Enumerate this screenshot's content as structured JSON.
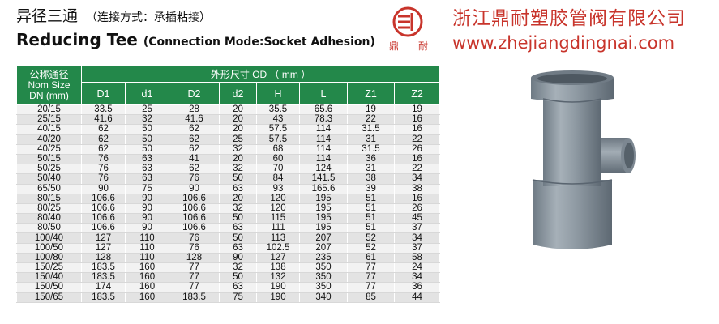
{
  "header": {
    "title_cn": "异径三通",
    "connection_cn": "（连接方式：承插粘接）",
    "title_en": "Reducing Tee",
    "connection_en": "(Connection Mode:Socket Adhesion)"
  },
  "logo": {
    "char1": "鼎",
    "char2": "耐"
  },
  "company": {
    "name_cn": "浙江鼎耐塑胶管阀有限公司",
    "url": "www.zhejiangdingnai.com"
  },
  "colors": {
    "header_green": "#23884a",
    "brand_red": "#c8342b",
    "pipe_grey": "#8f9aa3"
  },
  "table": {
    "nominal_header": [
      "公称通径",
      "Nom Size",
      "DN (mm)"
    ],
    "od_header": "外形尺寸 OD （ mm ）",
    "columns": [
      "D1",
      "d1",
      "D2",
      "d2",
      "H",
      "L",
      "Z1",
      "Z2"
    ],
    "rows": [
      [
        "20/15",
        "33.5",
        "25",
        "28",
        "20",
        "35.5",
        "65.6",
        "19",
        "19"
      ],
      [
        "25/15",
        "41.6",
        "32",
        "41.6",
        "20",
        "43",
        "78.3",
        "22",
        "16"
      ],
      [
        "40/15",
        "62",
        "50",
        "62",
        "20",
        "57.5",
        "114",
        "31.5",
        "16"
      ],
      [
        "40/20",
        "62",
        "50",
        "62",
        "25",
        "57.5",
        "114",
        "31",
        "22"
      ],
      [
        "40/25",
        "62",
        "50",
        "62",
        "32",
        "68",
        "114",
        "31.5",
        "26"
      ],
      [
        "50/15",
        "76",
        "63",
        "41",
        "20",
        "60",
        "114",
        "36",
        "16"
      ],
      [
        "50/25",
        "76",
        "63",
        "62",
        "32",
        "70",
        "124",
        "31",
        "22"
      ],
      [
        "50/40",
        "76",
        "63",
        "76",
        "50",
        "84",
        "141.5",
        "38",
        "34"
      ],
      [
        "65/50",
        "90",
        "75",
        "90",
        "63",
        "93",
        "165.6",
        "39",
        "38"
      ],
      [
        "80/15",
        "106.6",
        "90",
        "106.6",
        "20",
        "120",
        "195",
        "51",
        "16"
      ],
      [
        "80/25",
        "106.6",
        "90",
        "106.6",
        "32",
        "120",
        "195",
        "51",
        "26"
      ],
      [
        "80/40",
        "106.6",
        "90",
        "106.6",
        "50",
        "115",
        "195",
        "51",
        "45"
      ],
      [
        "80/50",
        "106.6",
        "90",
        "106.6",
        "63",
        "111",
        "195",
        "51",
        "37"
      ],
      [
        "100/40",
        "127",
        "110",
        "76",
        "50",
        "113",
        "207",
        "52",
        "34"
      ],
      [
        "100/50",
        "127",
        "110",
        "76",
        "63",
        "102.5",
        "207",
        "52",
        "37"
      ],
      [
        "100/80",
        "128",
        "110",
        "128",
        "90",
        "127",
        "235",
        "61",
        "58"
      ],
      [
        "150/25",
        "183.5",
        "160",
        "77",
        "32",
        "138",
        "350",
        "77",
        "24"
      ],
      [
        "150/40",
        "183.5",
        "160",
        "77",
        "50",
        "132",
        "350",
        "77",
        "34"
      ],
      [
        "150/50",
        "174",
        "160",
        "77",
        "63",
        "190",
        "350",
        "77",
        "36"
      ],
      [
        "150/65",
        "183.5",
        "160",
        "183.5",
        "75",
        "190",
        "340",
        "85",
        "44"
      ]
    ]
  }
}
